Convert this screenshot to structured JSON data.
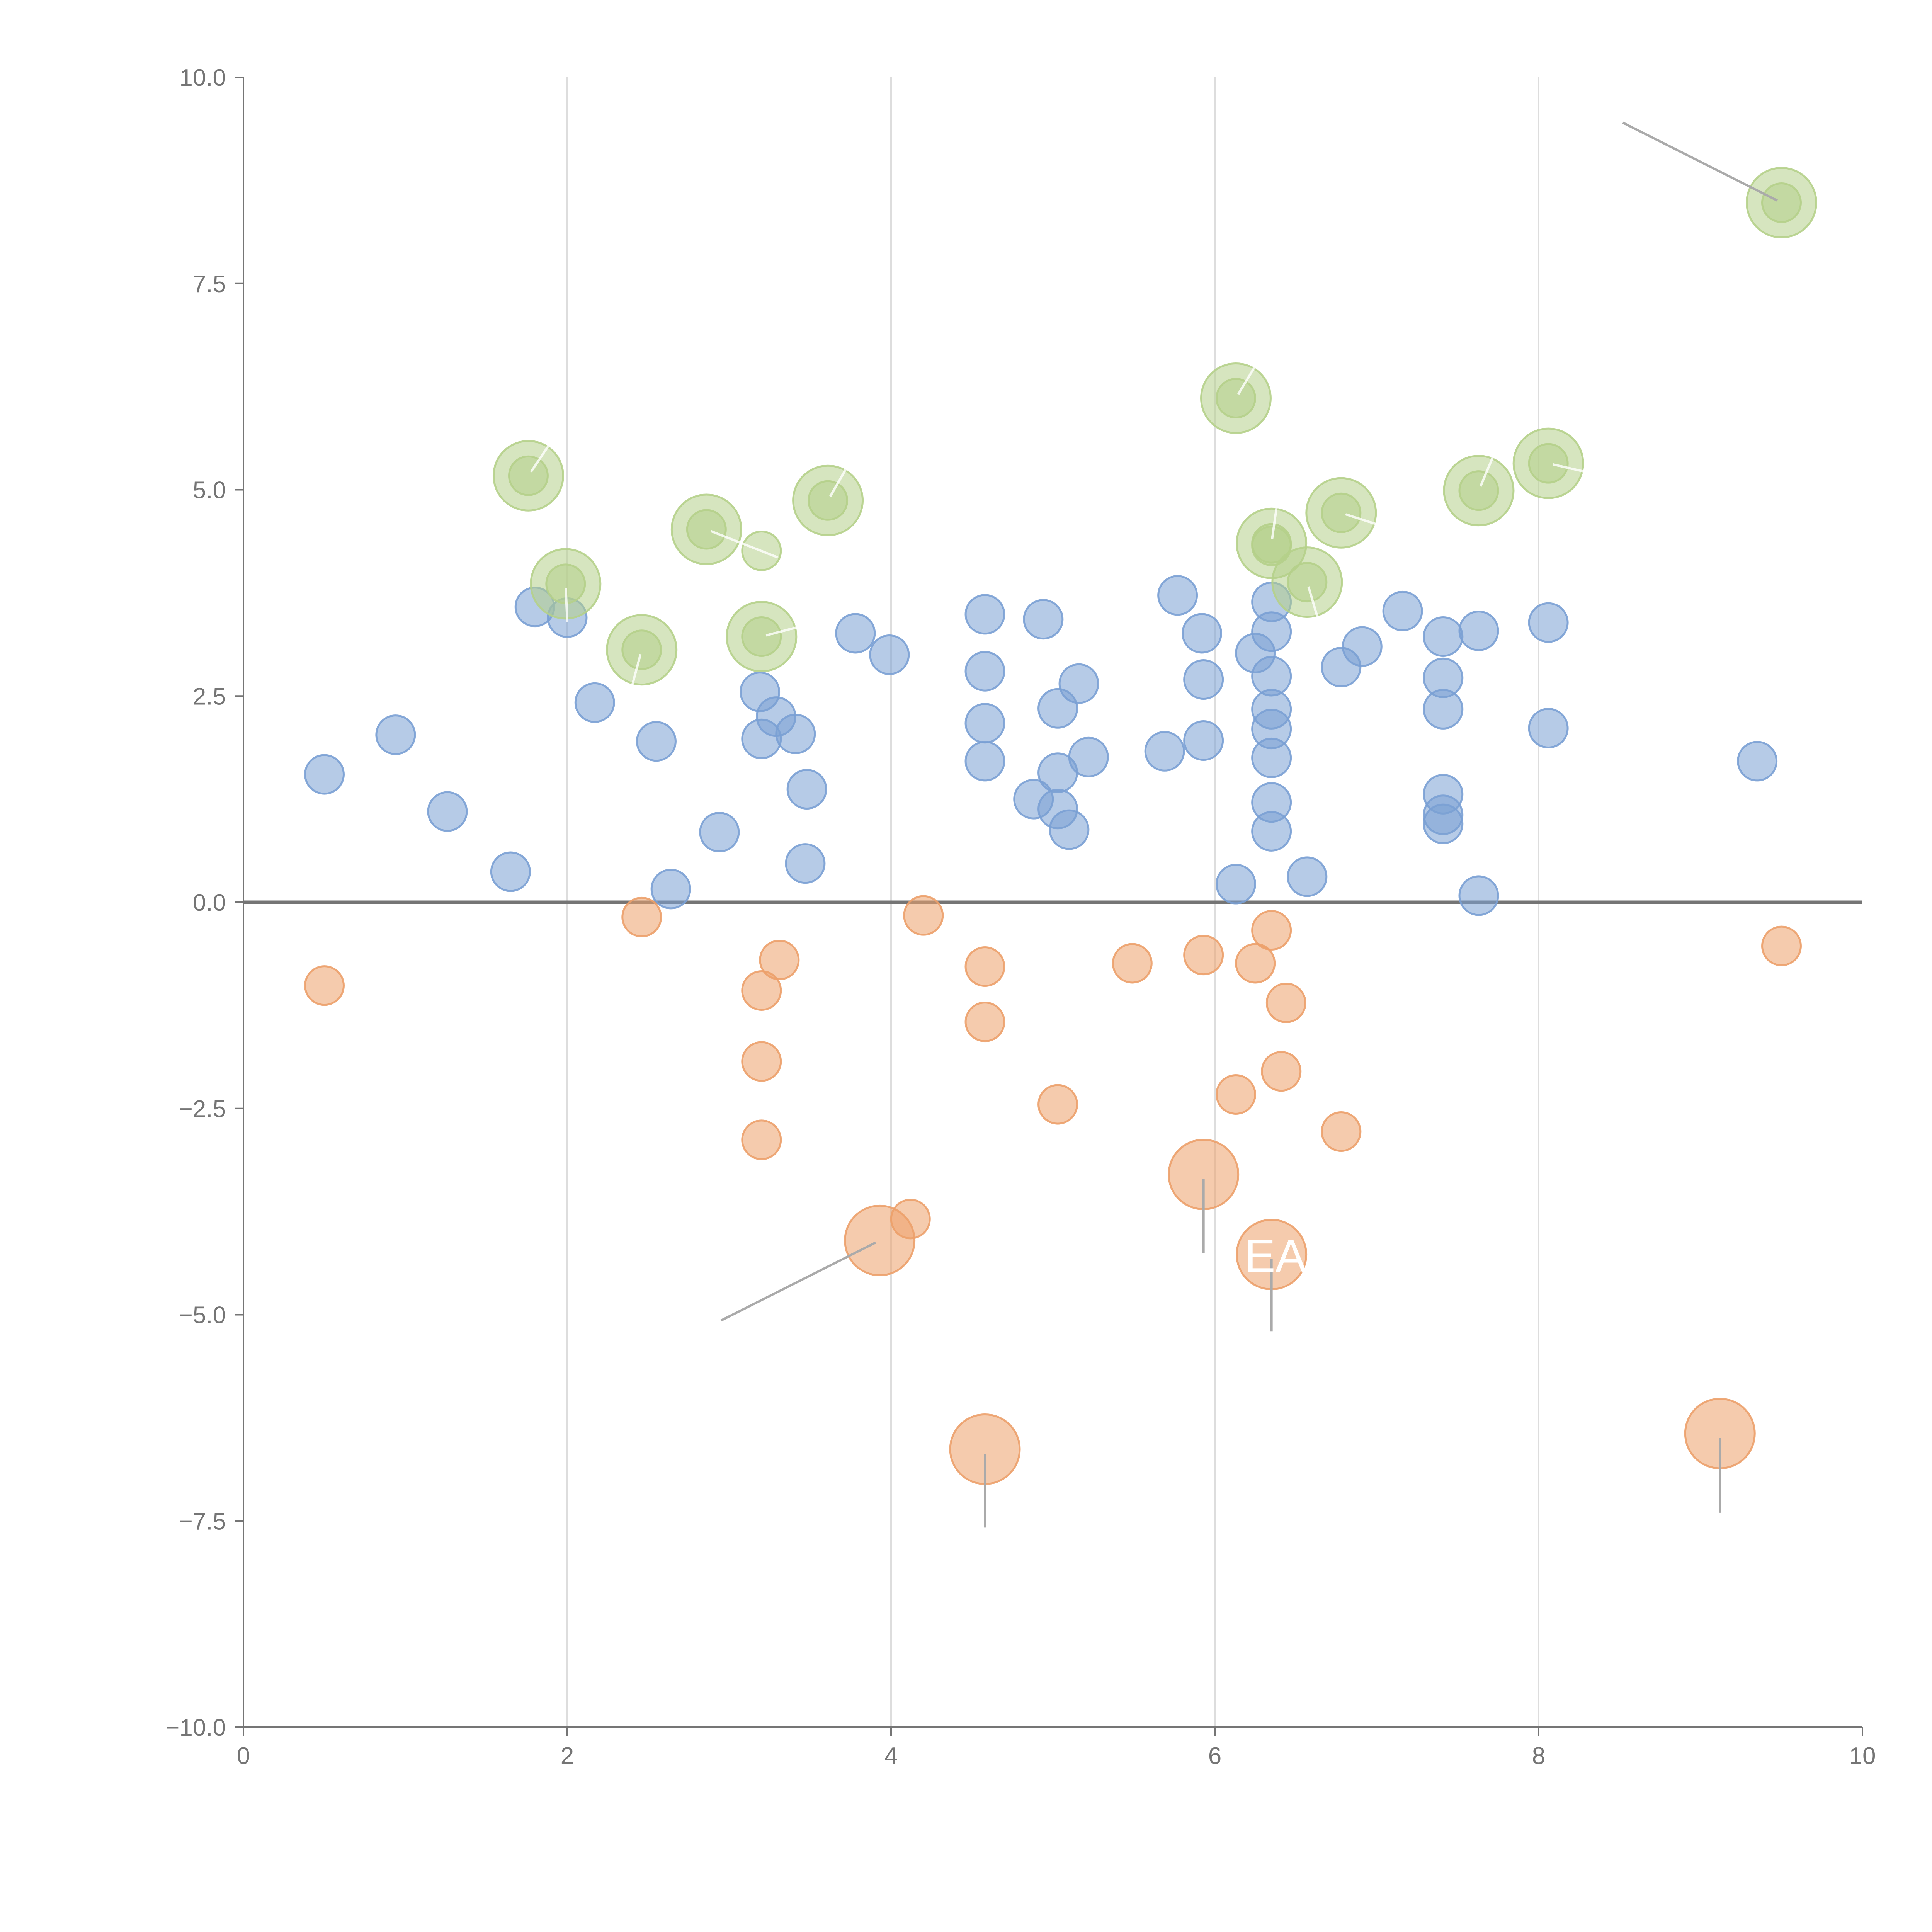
{
  "chart_data": {
    "type": "scatter",
    "title": "",
    "xlabel": "",
    "ylabel": "",
    "xlim": [
      0,
      10
    ],
    "ylim": [
      -10,
      10
    ],
    "x_ticks": [
      "0",
      "2",
      "4",
      "6",
      "8",
      "10"
    ],
    "y_ticks": [
      "−10.0",
      "−7.5",
      "−5.0",
      "−2.5",
      "0.0",
      "2.5",
      "5.0",
      "7.5",
      "10.0"
    ],
    "grid": "vertical",
    "zero_line": 0,
    "colors": {
      "blue": "#7aa0d4",
      "orange": "#eca06a",
      "green": "#b5d08a",
      "axis": "#757575",
      "grid": "#dddddd",
      "leader": "#aaaaaa"
    },
    "series": [
      {
        "name": "blue",
        "points": [
          [
            0.5,
            1.55
          ],
          [
            0.94,
            2.03
          ],
          [
            1.26,
            1.1
          ],
          [
            1.65,
            0.37
          ],
          [
            1.8,
            3.58
          ],
          [
            2.0,
            3.45
          ],
          [
            2.17,
            2.42
          ],
          [
            2.55,
            1.95
          ],
          [
            2.64,
            0.16
          ],
          [
            2.94,
            0.85
          ],
          [
            3.19,
            2.55
          ],
          [
            3.2,
            1.98
          ],
          [
            3.29,
            2.25
          ],
          [
            3.41,
            2.04
          ],
          [
            3.48,
            1.37
          ],
          [
            3.47,
            0.47
          ],
          [
            3.78,
            3.26
          ],
          [
            3.99,
            3.0
          ],
          [
            4.58,
            3.49
          ],
          [
            4.58,
            2.8
          ],
          [
            4.58,
            2.17
          ],
          [
            4.58,
            1.71
          ],
          [
            4.88,
            1.25
          ],
          [
            4.94,
            3.43
          ],
          [
            5.03,
            2.35
          ],
          [
            5.03,
            1.57
          ],
          [
            5.03,
            1.13
          ],
          [
            5.1,
            0.88
          ],
          [
            5.16,
            2.65
          ],
          [
            5.22,
            1.76
          ],
          [
            5.69,
            1.83
          ],
          [
            5.77,
            3.72
          ],
          [
            5.92,
            3.26
          ],
          [
            5.93,
            2.7
          ],
          [
            5.93,
            1.96
          ],
          [
            6.13,
            0.22
          ],
          [
            6.25,
            3.02
          ],
          [
            6.35,
            3.64
          ],
          [
            6.35,
            3.28
          ],
          [
            6.35,
            2.74
          ],
          [
            6.35,
            2.34
          ],
          [
            6.35,
            2.1
          ],
          [
            6.35,
            1.75
          ],
          [
            6.35,
            1.21
          ],
          [
            6.35,
            0.86
          ],
          [
            6.57,
            0.31
          ],
          [
            6.78,
            2.85
          ],
          [
            6.91,
            3.1
          ],
          [
            7.16,
            3.53
          ],
          [
            7.41,
            3.22
          ],
          [
            7.41,
            2.72
          ],
          [
            7.41,
            2.34
          ],
          [
            7.41,
            1.31
          ],
          [
            7.41,
            1.06
          ],
          [
            7.41,
            0.95
          ],
          [
            7.63,
            3.29
          ],
          [
            7.63,
            0.08
          ],
          [
            8.06,
            3.39
          ],
          [
            8.06,
            2.11
          ],
          [
            9.35,
            1.71
          ]
        ]
      },
      {
        "name": "orange",
        "points": [
          [
            0.5,
            -1.01
          ],
          [
            2.46,
            -0.18
          ],
          [
            3.2,
            -1.07
          ],
          [
            3.2,
            -1.93
          ],
          [
            3.2,
            -2.88
          ],
          [
            3.31,
            -0.7
          ],
          [
            4.12,
            -3.84
          ],
          [
            4.2,
            -0.16
          ],
          [
            4.58,
            -0.78
          ],
          [
            4.58,
            -1.45
          ],
          [
            5.03,
            -2.45
          ],
          [
            5.49,
            -0.74
          ],
          [
            5.93,
            -0.64
          ],
          [
            6.13,
            -2.33
          ],
          [
            6.25,
            -0.74
          ],
          [
            6.35,
            -0.34
          ],
          [
            6.41,
            -2.05
          ],
          [
            6.44,
            -1.22
          ],
          [
            6.78,
            -2.78
          ],
          [
            9.5,
            -0.53
          ]
        ]
      },
      {
        "name": "green",
        "points": [
          [
            1.76,
            5.17
          ],
          [
            1.99,
            3.86
          ],
          [
            2.46,
            3.06
          ],
          [
            2.86,
            4.52
          ],
          [
            3.2,
            4.26
          ],
          [
            3.2,
            3.22
          ],
          [
            3.61,
            4.87
          ],
          [
            6.13,
            6.11
          ],
          [
            6.35,
            4.35
          ],
          [
            6.35,
            4.32
          ],
          [
            6.57,
            3.88
          ],
          [
            6.78,
            4.72
          ],
          [
            7.63,
            4.99
          ],
          [
            8.06,
            5.32
          ],
          [
            9.5,
            8.48
          ]
        ]
      }
    ],
    "bubbles": [
      {
        "series": "green",
        "x": 1.76,
        "y": 5.17,
        "label": "",
        "leader": [
          1.9,
          5.58
        ]
      },
      {
        "series": "green",
        "x": 1.99,
        "y": 3.86,
        "label": "",
        "leader": [
          2.0,
          3.4
        ]
      },
      {
        "series": "green",
        "x": 2.46,
        "y": 3.06,
        "label": "",
        "leader": [
          2.4,
          2.62
        ]
      },
      {
        "series": "green",
        "x": 2.86,
        "y": 4.52,
        "label": "",
        "leader": [
          3.3,
          4.18
        ]
      },
      {
        "series": "green",
        "x": 3.2,
        "y": 3.22,
        "label": "",
        "leader": [
          3.55,
          3.4
        ]
      },
      {
        "series": "green",
        "x": 3.61,
        "y": 4.87,
        "label": "",
        "leader": [
          3.75,
          5.35
        ]
      },
      {
        "series": "green",
        "x": 6.13,
        "y": 6.11,
        "label": "",
        "leader": [
          6.28,
          6.6
        ]
      },
      {
        "series": "green",
        "x": 6.35,
        "y": 4.35,
        "label": "",
        "leader": [
          6.4,
          5.05
        ]
      },
      {
        "series": "green",
        "x": 6.57,
        "y": 3.88,
        "label": "",
        "leader": [
          6.65,
          3.35
        ]
      },
      {
        "series": "green",
        "x": 6.78,
        "y": 4.72,
        "label": "",
        "leader": [
          7.05,
          4.55
        ]
      },
      {
        "series": "green",
        "x": 7.63,
        "y": 4.99,
        "label": "",
        "leader": [
          7.75,
          5.55
        ]
      },
      {
        "series": "green",
        "x": 8.06,
        "y": 5.32,
        "label": "",
        "leader": [
          8.55,
          5.1
        ]
      },
      {
        "series": "green",
        "x": 9.5,
        "y": 8.48,
        "label": "",
        "leader": [
          8.52,
          9.45
        ]
      },
      {
        "series": "orange",
        "x": 3.93,
        "y": -4.1,
        "label": "",
        "leader": [
          2.95,
          -5.07
        ]
      },
      {
        "series": "orange",
        "x": 5.93,
        "y": -3.3,
        "label": "",
        "leader": [
          5.93,
          -4.25
        ]
      },
      {
        "series": "orange",
        "x": 6.35,
        "y": -4.27,
        "label": "EA",
        "leader": [
          6.35,
          -5.2
        ]
      },
      {
        "series": "orange",
        "x": 4.58,
        "y": -6.63,
        "label": "",
        "leader": [
          4.58,
          -7.58
        ]
      },
      {
        "series": "orange",
        "x": 9.12,
        "y": -6.44,
        "label": "",
        "leader": [
          9.12,
          -7.4
        ]
      }
    ]
  }
}
